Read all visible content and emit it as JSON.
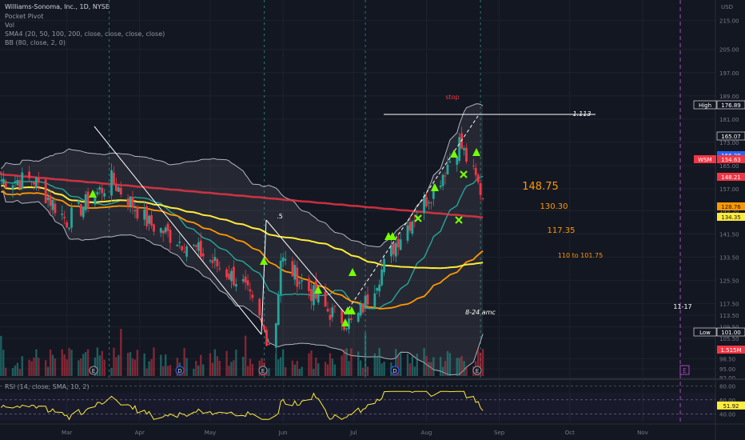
{
  "header": {
    "title": "Williams-Sonoma, Inc., 1D, NYSE",
    "indicators": [
      "Pocket Pivot",
      "Vol",
      "SMA4 (20, 50, 100, 200, close, close, close, close)",
      "BB (80, close, 2, 0)"
    ]
  },
  "price_scale": {
    "unit": "USD",
    "ticks": [
      "215.00",
      "205.00",
      "197.00",
      "189.00",
      "181.00",
      "173.00",
      "165.00",
      "157.00",
      "149.50",
      "141.50",
      "133.50",
      "125.50",
      "117.50",
      "113.50",
      "109.50",
      "105.50",
      "98.50",
      "95.00",
      "92.00"
    ]
  },
  "badges": [
    {
      "label": "High",
      "value": "176.89",
      "color": "#131722",
      "border": "#ffffff"
    },
    {
      "label": "",
      "value": "165.07",
      "color": "#131722",
      "border": "#ffffff"
    },
    {
      "label": "",
      "value": "156.28",
      "color": "#2962ff"
    },
    {
      "label": "WSM",
      "value": "154.63",
      "color": "#f23645"
    },
    {
      "label": "",
      "value": "148.21",
      "color": "#f23645"
    },
    {
      "label": "",
      "value": "128.76",
      "color": "#ff9800"
    },
    {
      "label": "",
      "value": "134.35",
      "color": "#ffeb3b"
    },
    {
      "label": "Low",
      "value": "101.00",
      "color": "#131722",
      "border": "#ffffff"
    },
    {
      "label": "",
      "value": "1.515M",
      "color": "#f23645"
    }
  ],
  "annotations": [
    {
      "text": "stop",
      "color": "#f23645"
    },
    {
      "text": "1.113",
      "color": "#ffffff"
    },
    {
      "text": "148.75",
      "color": "#ff9800"
    },
    {
      "text": "130.30",
      "color": "#ff9800"
    },
    {
      "text": "117.35",
      "color": "#ff9800"
    },
    {
      "text": "110 to 101.75",
      "color": "#ff9800"
    },
    {
      "text": ".5",
      "color": "#ffffff"
    },
    {
      "text": "8-24  amc",
      "color": "#ffffff"
    },
    {
      "text": "11-17",
      "color": "#ffffff"
    }
  ],
  "events": [
    "E",
    "D",
    "E",
    "D",
    "E",
    "E"
  ],
  "rsi": {
    "label": "RSI (14, close, SMA, 10, 2)",
    "ticks": [
      "80.00",
      "60.00",
      "40.00"
    ],
    "value": "51.92"
  },
  "x_axis": [
    "Mar",
    "Apr",
    "May",
    "Jun",
    "Jul",
    "Aug",
    "Sep",
    "Oct",
    "Nov"
  ],
  "colors": {
    "up": "#26a69a",
    "down": "#f23645",
    "sma20": "#26a69a",
    "sma50": "#ff9800",
    "sma100": "#ffeb3b",
    "sma200": "#f23645",
    "bb": "#b2b5be",
    "signal": "#76ff03"
  },
  "chart_data": {
    "type": "candlestick",
    "price_ylim": [
      92,
      222
    ],
    "close_series": [
      {
        "date": "2023-02-15",
        "close": 160
      },
      {
        "date": "2023-03-01",
        "close": 146
      },
      {
        "date": "2023-03-20",
        "close": 160
      },
      {
        "date": "2023-04-05",
        "close": 145
      },
      {
        "date": "2023-04-25",
        "close": 136
      },
      {
        "date": "2023-05-15",
        "close": 124
      },
      {
        "date": "2023-05-28",
        "close": 101
      },
      {
        "date": "2023-05-31",
        "close": 133
      },
      {
        "date": "2023-06-20",
        "close": 115
      },
      {
        "date": "2023-07-01",
        "close": 110
      },
      {
        "date": "2023-07-20",
        "close": 140
      },
      {
        "date": "2023-08-05",
        "close": 158
      },
      {
        "date": "2023-08-15",
        "close": 173
      },
      {
        "date": "2023-08-25",
        "close": 154.63
      }
    ]
  }
}
